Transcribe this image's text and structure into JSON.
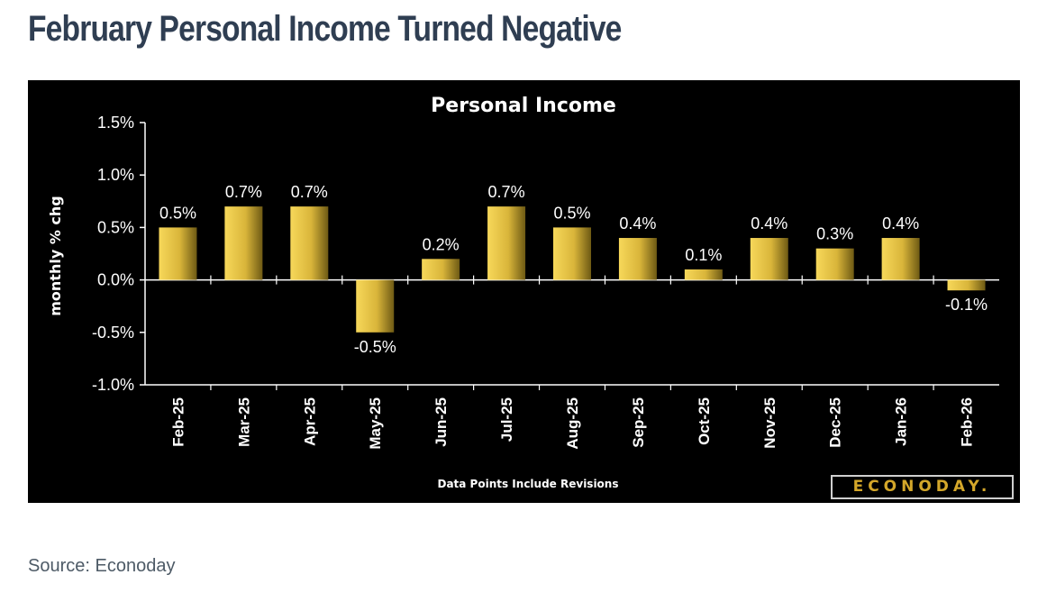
{
  "page": {
    "headline": "February Personal Income Turned Negative",
    "source": "Source: Econoday"
  },
  "chart_data": {
    "type": "bar",
    "title": "Personal Income",
    "ylabel": "monthly % chg",
    "xlabel": "",
    "footnote": "Data Points Include Revisions",
    "brand": "ECONODAY.",
    "categories": [
      "Feb-25",
      "Mar-25",
      "Apr-25",
      "May-25",
      "Jun-25",
      "Jul-25",
      "Aug-25",
      "Sep-25",
      "Oct-25",
      "Nov-25",
      "Dec-25",
      "Jan-26",
      "Feb-26"
    ],
    "values": [
      0.5,
      0.7,
      0.7,
      -0.5,
      0.2,
      0.7,
      0.5,
      0.4,
      0.1,
      0.4,
      0.3,
      0.4,
      -0.1
    ],
    "data_labels": [
      "0.5%",
      "0.7%",
      "0.7%",
      "-0.5%",
      "0.2%",
      "0.7%",
      "0.5%",
      "0.4%",
      "0.1%",
      "0.4%",
      "0.3%",
      "0.4%",
      "-0.1%"
    ],
    "ylim": [
      -1.0,
      1.5
    ],
    "yticks": [
      1.5,
      1.0,
      0.5,
      0.0,
      -0.5,
      -1.0
    ],
    "ytick_labels": [
      "1.5%",
      "1.0%",
      "0.5%",
      "0.0%",
      "-0.5%",
      "-1.0%"
    ],
    "grid": false,
    "legend": "none",
    "colors": {
      "background": "#000000",
      "bar_light": "#f7d85a",
      "bar_dark": "#6e5a14",
      "axis": "#ffffff"
    }
  }
}
